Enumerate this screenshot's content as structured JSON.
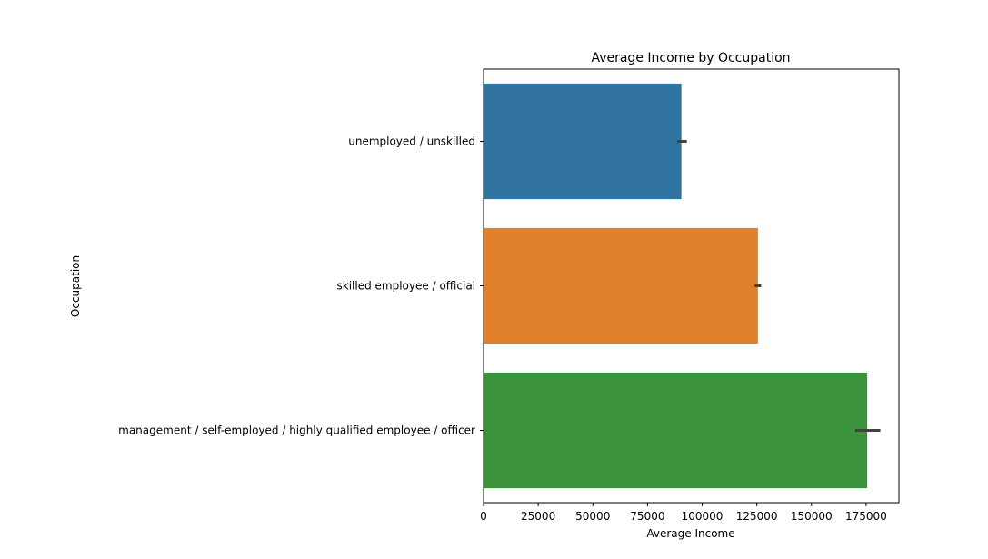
{
  "chart_data": {
    "type": "bar",
    "orientation": "horizontal",
    "title": "Average Income by Occupation",
    "xlabel": "Average Income",
    "ylabel": "Occupation",
    "xlim": [
      0,
      190000
    ],
    "xticks": [
      0,
      25000,
      50000,
      75000,
      100000,
      125000,
      150000,
      175000
    ],
    "xtick_labels": [
      "0",
      "25000",
      "50000",
      "75000",
      "100000",
      "125000",
      "150000",
      "175000"
    ],
    "grid": false,
    "bars": [
      {
        "category": "unemployed / unskilled",
        "value": 90500,
        "ci": [
          88500,
          93000
        ],
        "color": "#3274a1"
      },
      {
        "category": "skilled employee / official",
        "value": 125500,
        "ci": [
          124000,
          127000
        ],
        "color": "#e1812c"
      },
      {
        "category": "management / self-employed / highly qualified employee / officer",
        "value": 175500,
        "ci": [
          170000,
          181500
        ],
        "color": "#3a923a"
      }
    ]
  }
}
